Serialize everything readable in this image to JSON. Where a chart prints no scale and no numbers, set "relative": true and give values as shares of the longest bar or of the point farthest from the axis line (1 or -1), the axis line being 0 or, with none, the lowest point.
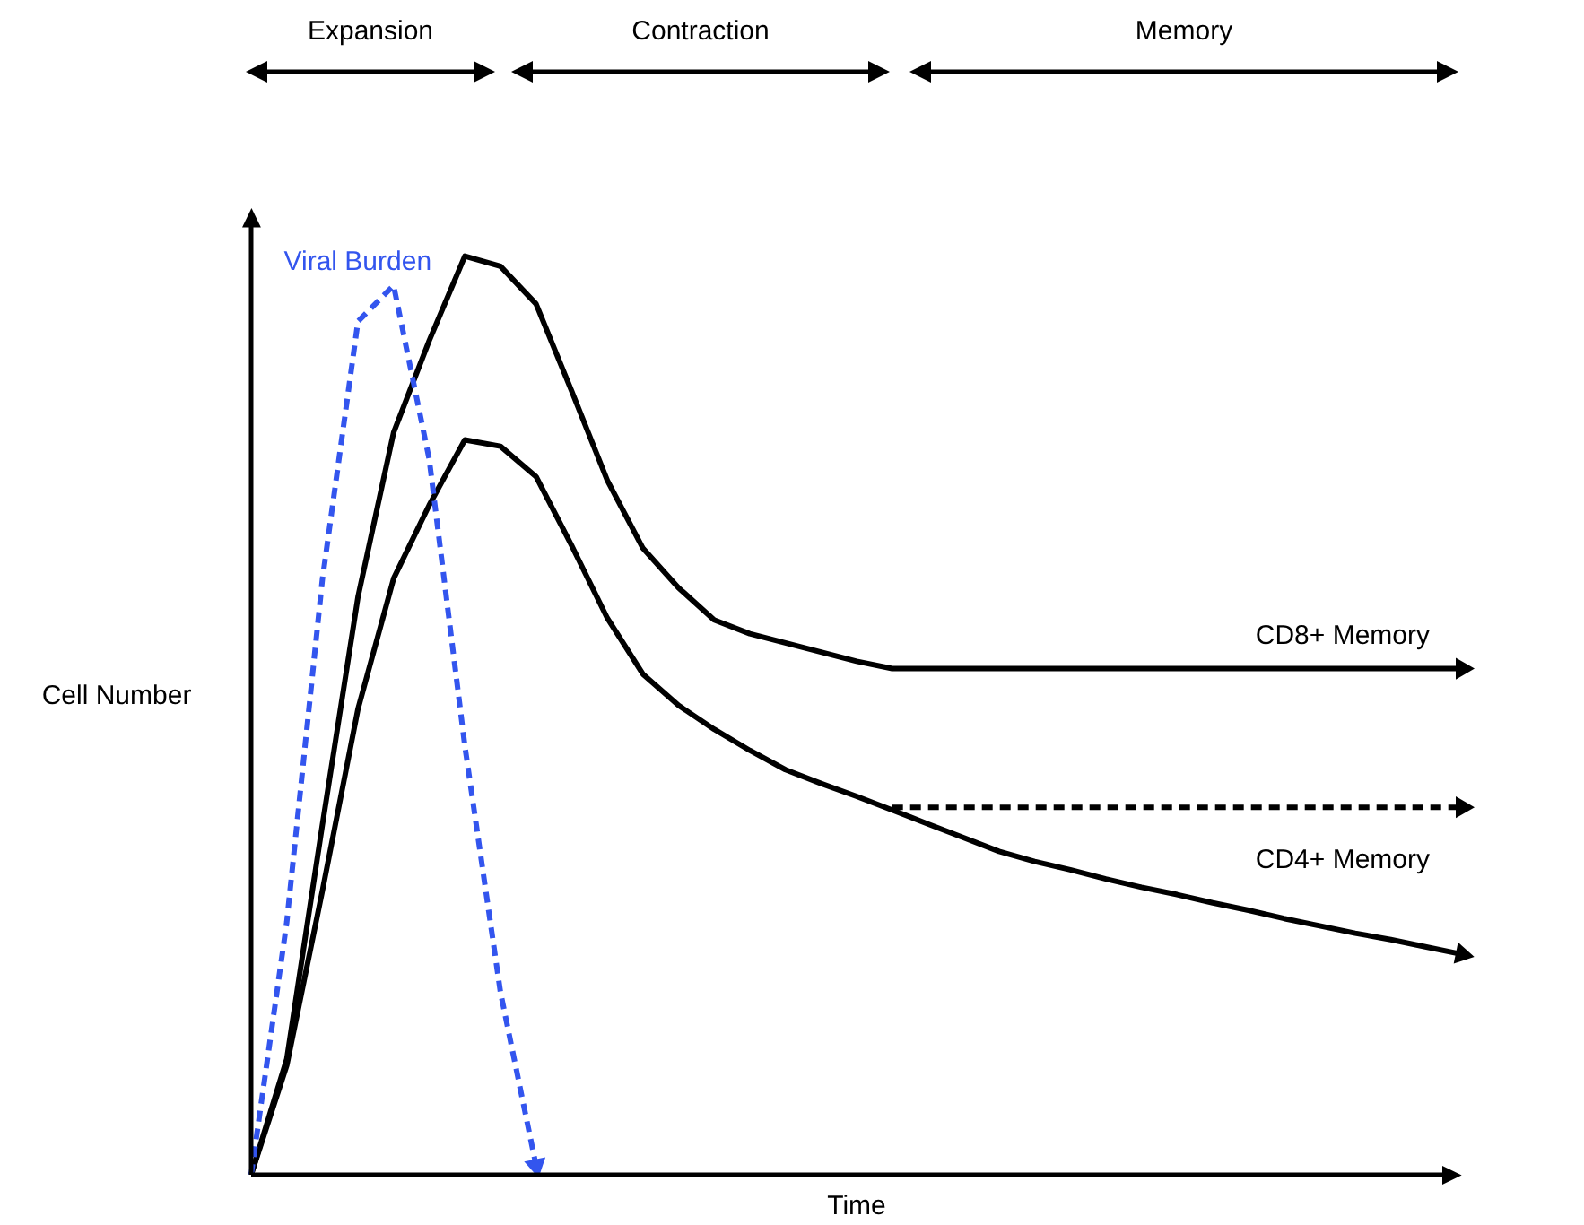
{
  "chart_data": {
    "type": "line",
    "relative": true,
    "xlabel": "Time",
    "ylabel": "Cell Number",
    "legend": false,
    "marker": "none",
    "annotations": [
      "Expansion",
      "Contraction",
      "Memory"
    ],
    "categories": [
      null,
      null,
      null,
      null,
      null,
      null,
      null,
      null,
      null,
      null,
      null,
      null,
      null,
      null,
      null,
      null,
      null,
      null,
      null,
      null,
      null,
      null,
      null,
      null,
      null,
      null,
      null,
      null,
      null,
      null,
      null,
      null,
      null,
      null,
      null
    ],
    "series": [
      {
        "name": "Viral Burden",
        "color": "#3355ee",
        "line_style": "dashed",
        "values": [
          0,
          0.275,
          0.648,
          0.929,
          0.968,
          0.779,
          0.467,
          0.199,
          0.01,
          null,
          null,
          null,
          null,
          null,
          null,
          null,
          null,
          null,
          null,
          null,
          null,
          null,
          null,
          null,
          null,
          null,
          null,
          null,
          null,
          null,
          null,
          null,
          null,
          null,
          null
        ]
      },
      {
        "name": "CD8+ Memory",
        "color": "#000000",
        "line_style": "solid",
        "values": [
          0,
          0.126,
          0.381,
          0.629,
          0.808,
          0.908,
          1,
          0.989,
          0.948,
          0.853,
          0.756,
          0.682,
          0.639,
          0.604,
          0.589,
          0.579,
          0.569,
          0.559,
          0.551,
          0.551,
          0.551,
          0.551,
          0.551,
          0.551,
          0.551,
          0.551,
          0.551,
          0.551,
          0.551,
          0.551,
          0.551,
          0.551,
          0.551,
          0.551,
          0.551
        ]
      },
      {
        "name": "CD4+ Memory",
        "color": "#000000",
        "line_style": "solid",
        "values": [
          0,
          0.119,
          0.309,
          0.507,
          0.649,
          0.729,
          0.8,
          0.793,
          0.76,
          0.685,
          0.606,
          0.545,
          0.511,
          0.485,
          0.462,
          0.441,
          0.426,
          0.412,
          0.397,
          0.382,
          0.367,
          0.352,
          0.341,
          0.332,
          0.322,
          0.313,
          0.305,
          0.296,
          0.288,
          0.279,
          0.271,
          0.263,
          0.256,
          0.248,
          0.24
        ]
      },
      {
        "color": "#000000",
        "line_style": "dashed",
        "values": [
          null,
          null,
          null,
          null,
          null,
          null,
          null,
          null,
          null,
          null,
          null,
          null,
          null,
          null,
          null,
          null,
          null,
          null,
          0.4,
          0.4,
          0.4,
          0.4,
          0.4,
          0.4,
          0.4,
          0.4,
          0.4,
          0.4,
          0.4,
          0.4,
          0.4,
          0.4,
          0.4,
          0.4,
          0.4
        ]
      }
    ]
  }
}
